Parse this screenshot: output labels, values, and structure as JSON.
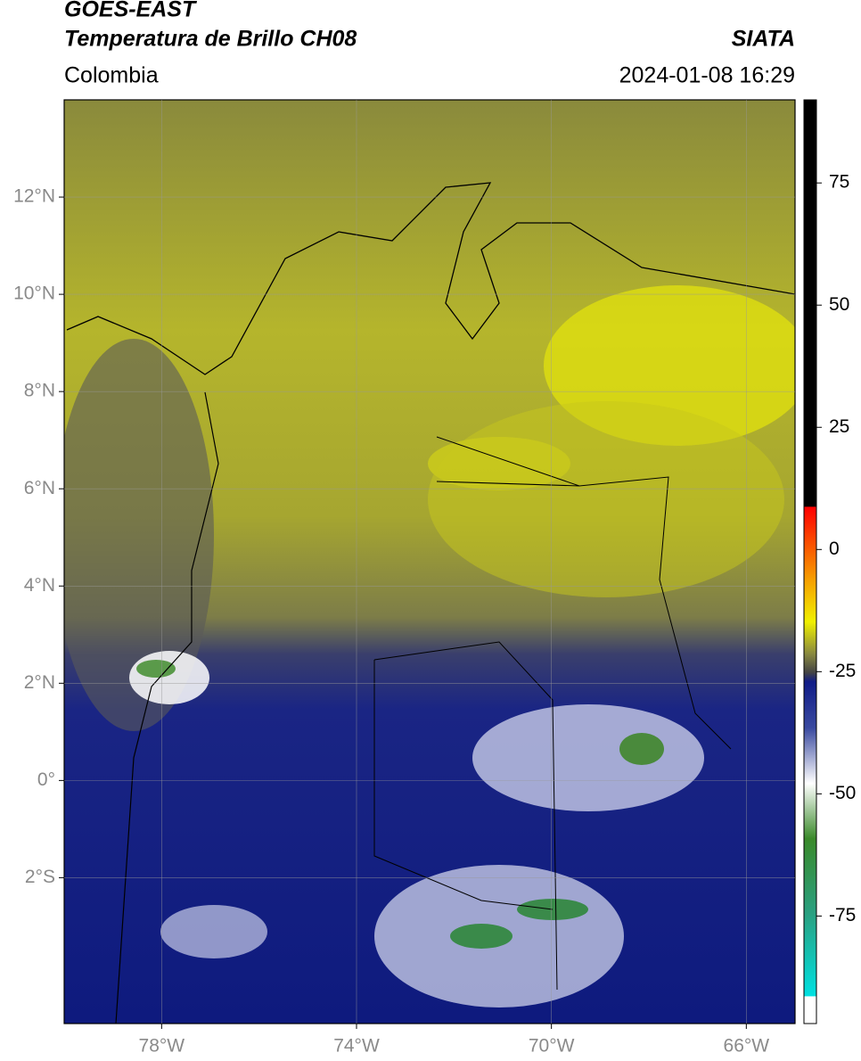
{
  "header": {
    "source": "GOES-EAST",
    "product": "Temperatura de Brillo CH08",
    "region": "Colombia",
    "agency": "SIATA",
    "datetime": "2024-01-08 16:29"
  },
  "map": {
    "xlim": [
      -80,
      -65
    ],
    "ylim": [
      -5,
      14
    ],
    "xticks": [
      {
        "value": -78,
        "label": "78°W"
      },
      {
        "value": -74,
        "label": "74°W"
      },
      {
        "value": -70,
        "label": "70°W"
      },
      {
        "value": -66,
        "label": "66°W"
      }
    ],
    "yticks": [
      {
        "value": 12,
        "label": "12°N"
      },
      {
        "value": 10,
        "label": "10°N"
      },
      {
        "value": 8,
        "label": "8°N"
      },
      {
        "value": 6,
        "label": "6°N"
      },
      {
        "value": 4,
        "label": "4°N"
      },
      {
        "value": 2,
        "label": "2°N"
      },
      {
        "value": 0,
        "label": "0°"
      },
      {
        "value": -2,
        "label": "2°S"
      }
    ],
    "grid": true
  },
  "colorbar": {
    "lim": [
      -97,
      92
    ],
    "ticks": [
      75,
      50,
      25,
      0,
      -25,
      -50,
      -75
    ]
  }
}
